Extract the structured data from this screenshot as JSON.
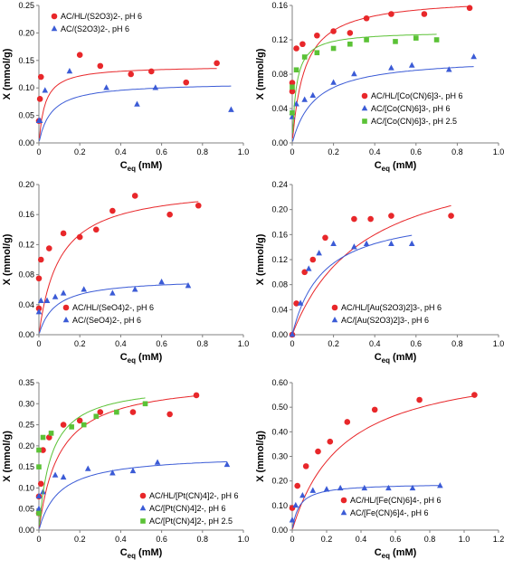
{
  "chart_data": [
    {
      "type": "scatter",
      "xlabel": "C",
      "xlabel_sub": "eq",
      "xlabel_unit": " (mM)",
      "ylabel": "X (mmol/g)",
      "xlim": [
        0,
        1.0
      ],
      "xticks": [
        0,
        0.2,
        0.4,
        0.6,
        0.8,
        1.0
      ],
      "ylim": [
        0,
        0.25
      ],
      "yticks": [
        0,
        0.05,
        0.1,
        0.15,
        0.2,
        0.25
      ],
      "yfmt": 2,
      "xfmt": 1,
      "legend_position": "top-left",
      "series": [
        {
          "name": "AC/HL/(S2O3)2-, pH 6",
          "marker": "circle",
          "color": "#e8272a",
          "x": [
            0.0,
            0.005,
            0.01,
            0.2,
            0.3,
            0.45,
            0.55,
            0.72,
            0.87
          ],
          "y": [
            0.04,
            0.08,
            0.12,
            0.16,
            0.14,
            0.125,
            0.13,
            0.11,
            0.145
          ],
          "fit": [
            0.14,
            0.03
          ]
        },
        {
          "name": "AC/(S2O3)2-, pH 6",
          "marker": "triangle",
          "color": "#3b5bd6",
          "x": [
            0.0,
            0.005,
            0.03,
            0.15,
            0.33,
            0.48,
            0.57,
            0.94
          ],
          "y": [
            0.04,
            0.04,
            0.095,
            0.13,
            0.1,
            0.07,
            0.1,
            0.06
          ],
          "fit": [
            0.11,
            0.06
          ]
        }
      ]
    },
    {
      "type": "scatter",
      "xlabel": "C",
      "xlabel_sub": "eq",
      "xlabel_unit": " (mM)",
      "ylabel": "X (mmol/g)",
      "xlim": [
        0,
        1.0
      ],
      "xticks": [
        0,
        0.2,
        0.4,
        0.6,
        0.8,
        1.0
      ],
      "ylim": [
        0,
        0.16
      ],
      "yticks": [
        0,
        0.04,
        0.08,
        0.12,
        0.16
      ],
      "yfmt": 2,
      "xfmt": 1,
      "legend_position": "bottom-right",
      "series": [
        {
          "name": "AC/HL/[Co(CN)6]3-, pH 6",
          "marker": "circle",
          "color": "#e8272a",
          "x": [
            0.0,
            0.0,
            0.02,
            0.05,
            0.12,
            0.2,
            0.28,
            0.36,
            0.48,
            0.64,
            0.86
          ],
          "y": [
            0.06,
            0.07,
            0.11,
            0.115,
            0.125,
            0.13,
            0.128,
            0.145,
            0.15,
            0.15,
            0.157
          ],
          "fit": [
            0.17,
            0.06
          ]
        },
        {
          "name": "AC/[Co(CN)6]3-, pH 6",
          "marker": "triangle",
          "color": "#3b5bd6",
          "x": [
            0.0,
            0.0,
            0.02,
            0.06,
            0.1,
            0.2,
            0.3,
            0.48,
            0.58,
            0.76,
            0.88
          ],
          "y": [
            0.03,
            0.035,
            0.045,
            0.05,
            0.055,
            0.07,
            0.08,
            0.087,
            0.09,
            0.085,
            0.1
          ],
          "fit": [
            0.1,
            0.11
          ]
        },
        {
          "name": "AC/[Co(CN)6]3-, pH 2.5",
          "marker": "square",
          "color": "#5bc236",
          "x": [
            0.0,
            0.0,
            0.02,
            0.06,
            0.12,
            0.2,
            0.28,
            0.36,
            0.5,
            0.6,
            0.7
          ],
          "y": [
            0.035,
            0.065,
            0.085,
            0.1,
            0.105,
            0.11,
            0.115,
            0.12,
            0.118,
            0.122,
            0.12
          ],
          "fit": [
            0.13,
            0.02
          ]
        }
      ]
    },
    {
      "type": "scatter",
      "xlabel": "C",
      "xlabel_sub": "eq",
      "xlabel_unit": " (mM)",
      "ylabel": "X (mmol/g)",
      "xlim": [
        0,
        1.0
      ],
      "xticks": [
        0,
        0.2,
        0.4,
        0.6,
        0.8,
        1.0
      ],
      "ylim": [
        0,
        0.2
      ],
      "yticks": [
        0,
        0.04,
        0.08,
        0.12,
        0.16,
        0.2
      ],
      "yfmt": 2,
      "xfmt": 1,
      "legend_position": "bottom-right",
      "series": [
        {
          "name": "AC/HL/(SeO4)2-, pH 6",
          "marker": "circle",
          "color": "#e8272a",
          "x": [
            0.0,
            0.0,
            0.01,
            0.05,
            0.12,
            0.2,
            0.28,
            0.36,
            0.47,
            0.64,
            0.78
          ],
          "y": [
            0.035,
            0.075,
            0.1,
            0.115,
            0.135,
            0.13,
            0.14,
            0.165,
            0.185,
            0.16,
            0.172
          ],
          "fit": [
            0.2,
            0.1
          ]
        },
        {
          "name": "AC/(SeO4)2-, pH 6",
          "marker": "triangle",
          "color": "#3b5bd6",
          "x": [
            0.0,
            0.01,
            0.04,
            0.08,
            0.12,
            0.22,
            0.36,
            0.47,
            0.6,
            0.73
          ],
          "y": [
            0.03,
            0.045,
            0.045,
            0.05,
            0.055,
            0.06,
            0.055,
            0.06,
            0.07,
            0.065
          ],
          "fit": [
            0.075,
            0.08
          ]
        }
      ]
    },
    {
      "type": "scatter",
      "xlabel": "C",
      "xlabel_sub": "eq",
      "xlabel_unit": " (mM)",
      "ylabel": "X (mmol/g)",
      "xlim": [
        0,
        1.0
      ],
      "xticks": [
        0,
        0.2,
        0.4,
        0.6,
        0.8,
        1.0
      ],
      "ylim": [
        0,
        0.24
      ],
      "yticks": [
        0,
        0.04,
        0.08,
        0.12,
        0.16,
        0.2,
        0.24
      ],
      "yfmt": 2,
      "xfmt": 1,
      "legend_position": "bottom-right",
      "series": [
        {
          "name": "AC/HL/[Au(S2O3)2]3-, pH 6",
          "marker": "circle",
          "color": "#e8272a",
          "x": [
            0.0,
            0.02,
            0.06,
            0.1,
            0.16,
            0.3,
            0.38,
            0.48,
            0.77
          ],
          "y": [
            0.0,
            0.05,
            0.1,
            0.12,
            0.155,
            0.185,
            0.185,
            0.19,
            0.19
          ],
          "fit": [
            0.3,
            0.35
          ]
        },
        {
          "name": "AC/[Au(S2O3)2]3-, pH 6",
          "marker": "triangle",
          "color": "#3b5bd6",
          "x": [
            0.0,
            0.04,
            0.08,
            0.13,
            0.2,
            0.3,
            0.36,
            0.48,
            0.58
          ],
          "y": [
            0.0,
            0.05,
            0.105,
            0.13,
            0.145,
            0.14,
            0.145,
            0.145,
            0.145
          ],
          "fit": [
            0.2,
            0.15
          ]
        }
      ]
    },
    {
      "type": "scatter",
      "xlabel": "C",
      "xlabel_sub": "eq",
      "xlabel_unit": " (mM)",
      "ylabel": "X (mmol/g)",
      "xlim": [
        0,
        1.0
      ],
      "xticks": [
        0,
        0.2,
        0.4,
        0.6,
        0.8,
        1.0
      ],
      "ylim": [
        0,
        0.35
      ],
      "yticks": [
        0,
        0.05,
        0.1,
        0.15,
        0.2,
        0.25,
        0.3,
        0.35
      ],
      "yfmt": 2,
      "xfmt": 1,
      "legend_position": "bottom-right",
      "series": [
        {
          "name": "AC/HL/[Pt(CN)4]2-, pH 6",
          "marker": "circle",
          "color": "#e8272a",
          "x": [
            0.0,
            0.0,
            0.01,
            0.02,
            0.05,
            0.12,
            0.2,
            0.3,
            0.46,
            0.64,
            0.77
          ],
          "y": [
            0.04,
            0.08,
            0.11,
            0.19,
            0.22,
            0.25,
            0.26,
            0.28,
            0.28,
            0.275,
            0.32
          ],
          "fit": [
            0.36,
            0.1
          ]
        },
        {
          "name": "AC/[Pt(CN)4]2-, pH 6",
          "marker": "triangle",
          "color": "#3b5bd6",
          "x": [
            0.0,
            0.0,
            0.02,
            0.08,
            0.12,
            0.24,
            0.36,
            0.46,
            0.58,
            0.92
          ],
          "y": [
            0.05,
            0.08,
            0.09,
            0.13,
            0.125,
            0.145,
            0.135,
            0.14,
            0.16,
            0.155
          ],
          "fit": [
            0.18,
            0.1
          ]
        },
        {
          "name": "AC/[Pt(CN)4]2-, pH 2.5",
          "marker": "square",
          "color": "#5bc236",
          "x": [
            0.0,
            0.0,
            0.0,
            0.02,
            0.06,
            0.16,
            0.22,
            0.28,
            0.38,
            0.52
          ],
          "y": [
            0.04,
            0.15,
            0.19,
            0.22,
            0.23,
            0.245,
            0.25,
            0.27,
            0.28,
            0.3
          ],
          "fit": [
            0.35,
            0.06
          ]
        }
      ]
    },
    {
      "type": "scatter",
      "xlabel": "C",
      "xlabel_sub": "eq",
      "xlabel_unit": " (mM)",
      "ylabel": "X (mmol/g)",
      "xlim": [
        0,
        1.2
      ],
      "xticks": [
        0,
        0.2,
        0.4,
        0.6,
        0.8,
        1.0,
        1.2
      ],
      "ylim": [
        0,
        0.6
      ],
      "yticks": [
        0,
        0.1,
        0.2,
        0.3,
        0.4,
        0.5,
        0.6
      ],
      "yfmt": 2,
      "xfmt": 1,
      "legend_position": "bottom-right",
      "series": [
        {
          "name": "AC/HL/[Fe(CN)6]4-, pH 6",
          "marker": "circle",
          "color": "#e8272a",
          "x": [
            0.0,
            0.03,
            0.08,
            0.15,
            0.22,
            0.32,
            0.48,
            0.74,
            1.06
          ],
          "y": [
            0.09,
            0.18,
            0.26,
            0.32,
            0.36,
            0.44,
            0.49,
            0.53,
            0.55
          ],
          "fit": [
            0.7,
            0.3
          ]
        },
        {
          "name": "AC/[Fe(CN)6]4-, pH 6",
          "marker": "triangle",
          "color": "#3b5bd6",
          "x": [
            0.0,
            0.02,
            0.06,
            0.12,
            0.2,
            0.28,
            0.42,
            0.56,
            0.7,
            0.86
          ],
          "y": [
            0.04,
            0.1,
            0.14,
            0.16,
            0.165,
            0.17,
            0.17,
            0.17,
            0.17,
            0.18
          ],
          "fit": [
            0.19,
            0.04
          ]
        }
      ]
    }
  ]
}
